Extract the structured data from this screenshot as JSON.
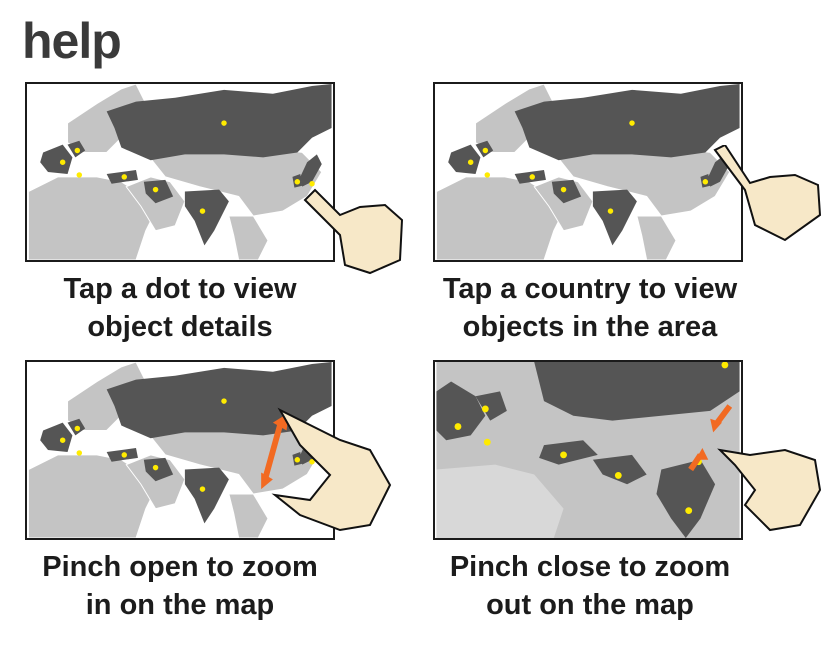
{
  "title": "help",
  "colors": {
    "land": "#c4c4c4",
    "highlight": "#555555",
    "dot": "#ffeb00",
    "arrow": "#f26a22",
    "frame": "#1b1b1b"
  },
  "panels": [
    {
      "id": "tap-dot",
      "line1": "Tap a dot to view",
      "line2": "object details",
      "hand_icon": "tap-hand-icon"
    },
    {
      "id": "tap-country",
      "line1": "Tap a country to view",
      "line2": "objects in the area",
      "hand_icon": "tap-hand-icon"
    },
    {
      "id": "pinch-open",
      "line1": "Pinch open to zoom",
      "line2": "in on the map",
      "hand_icon": "pinch-hand-icon"
    },
    {
      "id": "pinch-close",
      "line1": "Pinch close to zoom",
      "line2": "out on the map",
      "hand_icon": "pinch-hand-icon"
    }
  ]
}
